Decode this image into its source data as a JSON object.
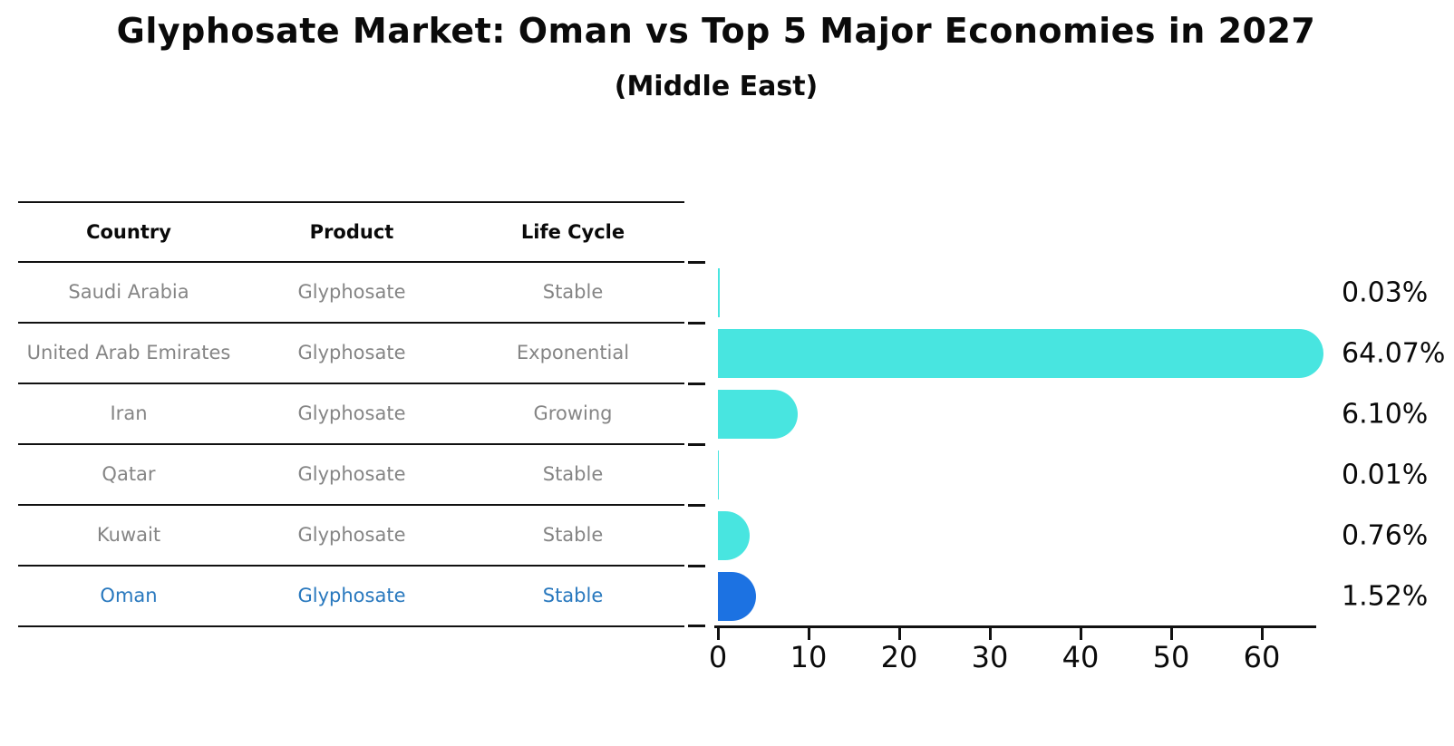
{
  "title": "Glyphosate Market: Oman vs Top 5 Major Economies in 2027",
  "subtitle": "(Middle East)",
  "table": {
    "headers": {
      "country": "Country",
      "product": "Product",
      "life_cycle": "Life Cycle"
    }
  },
  "rows": [
    {
      "country": "Saudi Arabia",
      "product": "Glyphosate",
      "life_cycle": "Stable",
      "label": "0.03%",
      "highlight": false
    },
    {
      "country": "United Arab Emirates",
      "product": "Glyphosate",
      "life_cycle": "Exponential",
      "label": "64.07%",
      "highlight": false
    },
    {
      "country": "Iran",
      "product": "Glyphosate",
      "life_cycle": "Growing",
      "label": "6.10%",
      "highlight": false
    },
    {
      "country": "Qatar",
      "product": "Glyphosate",
      "life_cycle": "Stable",
      "label": "0.01%",
      "highlight": false
    },
    {
      "country": "Kuwait",
      "product": "Glyphosate",
      "life_cycle": "Stable",
      "label": "0.76%",
      "highlight": false
    },
    {
      "country": "Oman",
      "product": "Glyphosate",
      "life_cycle": "Stable",
      "label": "1.52%",
      "highlight": true
    }
  ],
  "chart_data": {
    "type": "bar",
    "orientation": "horizontal",
    "title": "Glyphosate Market: Oman vs Top 5 Major Economies in 2027 (Middle East)",
    "categories": [
      "Saudi Arabia",
      "United Arab Emirates",
      "Iran",
      "Qatar",
      "Kuwait",
      "Oman"
    ],
    "values": [
      0.03,
      64.07,
      6.1,
      0.01,
      0.76,
      1.52
    ],
    "value_labels": [
      "0.03%",
      "64.07%",
      "6.10%",
      "0.01%",
      "0.76%",
      "1.52%"
    ],
    "xlabel": "",
    "ylabel": "",
    "xlim": [
      0,
      66
    ],
    "x_ticks": [
      0,
      10,
      20,
      30,
      40,
      50,
      60
    ],
    "x_tick_labels": [
      "0",
      "10",
      "20",
      "30",
      "40",
      "50",
      "60"
    ],
    "grid": false,
    "legend": false,
    "bar_colors": [
      "#48E5E0",
      "#48E5E0",
      "#48E5E0",
      "#48E5E0",
      "#48E5E0",
      "#1C72E2"
    ],
    "highlight_color": "#1C72E2",
    "default_color": "#48E5E0",
    "highlight_text_color": "#2878BE"
  }
}
